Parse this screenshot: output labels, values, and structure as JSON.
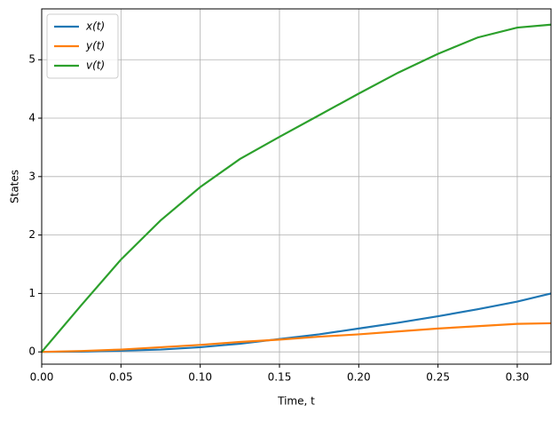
{
  "chart_data": {
    "type": "line",
    "xlabel": "Time, t",
    "ylabel": "States",
    "x": [
      0,
      0.025,
      0.05,
      0.075,
      0.1,
      0.125,
      0.15,
      0.175,
      0.2,
      0.225,
      0.25,
      0.275,
      0.3,
      0.3213
    ],
    "series": [
      {
        "name": "x(t)",
        "color": "#1f77b4",
        "values": [
          0,
          0.005,
          0.02,
          0.04,
          0.08,
          0.14,
          0.22,
          0.3,
          0.4,
          0.5,
          0.61,
          0.73,
          0.86,
          1.0
        ]
      },
      {
        "name": "y(t)",
        "color": "#ff7f0e",
        "values": [
          0,
          0.015,
          0.04,
          0.08,
          0.12,
          0.17,
          0.21,
          0.26,
          0.3,
          0.35,
          0.4,
          0.44,
          0.48,
          0.49
        ]
      },
      {
        "name": "v(t)",
        "color": "#2ca02c",
        "values": [
          0,
          0.8,
          1.58,
          2.25,
          2.82,
          3.3,
          3.68,
          4.05,
          4.42,
          4.78,
          5.1,
          5.38,
          5.55,
          5.6
        ]
      }
    ],
    "xlim": [
      0,
      0.3213
    ],
    "ylim": [
      -0.21,
      5.87
    ],
    "xticks": [
      {
        "value": 0,
        "label": "0.00"
      },
      {
        "value": 0.05,
        "label": "0.05"
      },
      {
        "value": 0.1,
        "label": "0.10"
      },
      {
        "value": 0.15,
        "label": "0.15"
      },
      {
        "value": 0.2,
        "label": "0.20"
      },
      {
        "value": 0.25,
        "label": "0.25"
      },
      {
        "value": 0.3,
        "label": "0.30"
      }
    ],
    "yticks": [
      0,
      1,
      2,
      3,
      4,
      5
    ],
    "grid": true,
    "legend": "upper-left"
  }
}
